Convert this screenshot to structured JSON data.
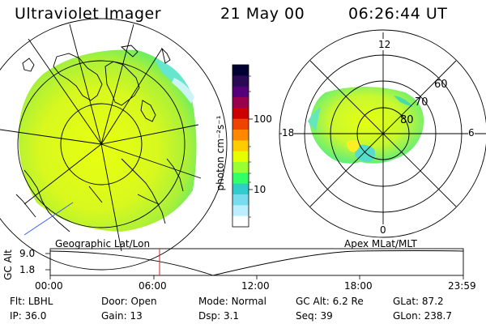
{
  "header": {
    "instrument": "Ultraviolet Imager",
    "date": "21 May 00",
    "time": "06:26:44 UT"
  },
  "colorbar": {
    "unit": "photon cm⁻²s⁻¹",
    "ticks": [
      "100",
      "10"
    ],
    "colors": [
      "#000033",
      "#2a0a55",
      "#55007a",
      "#99004d",
      "#cc0000",
      "#ee4400",
      "#ff8800",
      "#ffcc00",
      "#e6ff00",
      "#99ff33",
      "#33ff66",
      "#33cccc",
      "#77ddee",
      "#bbeeff",
      "#ffffff"
    ]
  },
  "mlt_plot": {
    "labels": {
      "top": "12",
      "bottom": "0",
      "left": "18",
      "right": "6"
    },
    "lat_labels": [
      "60",
      "70",
      "80"
    ]
  },
  "timeline": {
    "geo_label": "Geographic Lat/Lon",
    "apex_label": "Apex MLat/MLT",
    "axis_title": "GC Alt",
    "y_top": "9.0",
    "y_bottom": "1.8",
    "x_ticks": [
      "00:00",
      "06:00",
      "12:00",
      "18:00",
      "23:59"
    ]
  },
  "footer": {
    "row1": [
      {
        "label": "Flt:",
        "value": "LBHL"
      },
      {
        "label": "Door:",
        "value": "Open"
      },
      {
        "label": "Mode:",
        "value": "Normal"
      },
      {
        "label": "GC Alt:",
        "value": "6.2 Re"
      },
      {
        "label": "GLat:",
        "value": "87.2"
      }
    ],
    "row2": [
      {
        "label": "IP:",
        "value": "36.0"
      },
      {
        "label": "Gain:",
        "value": "13"
      },
      {
        "label": "Dsp:",
        "value": "3.1"
      },
      {
        "label": "Seq:",
        "value": "39"
      },
      {
        "label": "GLon:",
        "value": "238.7"
      }
    ]
  }
}
